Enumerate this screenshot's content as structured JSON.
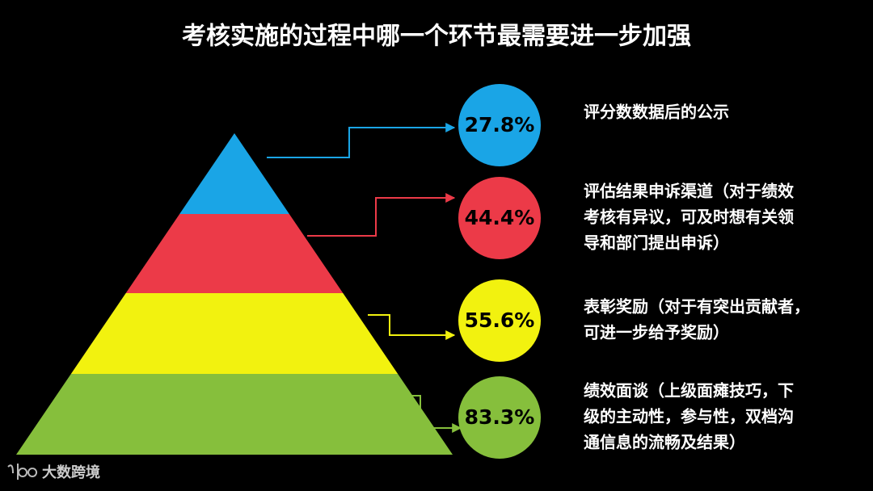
{
  "title": "考核实施的过程中哪一个环节最需要进一步加强",
  "items": [
    {
      "percent": "27.8%",
      "lines": [
        "评分数数据后的公示"
      ]
    },
    {
      "percent": "44.4%",
      "lines": [
        "评估结果申诉渠道（对于绩效",
        "考核有异议，可及时想有关领",
        "导和部门提出申诉）"
      ]
    },
    {
      "percent": "55.6%",
      "lines": [
        "表彰奖励（对于有突出贡献者，",
        "可进一步给予奖励）"
      ]
    },
    {
      "percent": "83.3%",
      "lines": [
        "绩效面谈（上级面瘫技巧，下",
        "级的主动性，参与性，双档沟",
        "通信息的流畅及结果）"
      ]
    }
  ],
  "watermark": "大数跨境"
}
